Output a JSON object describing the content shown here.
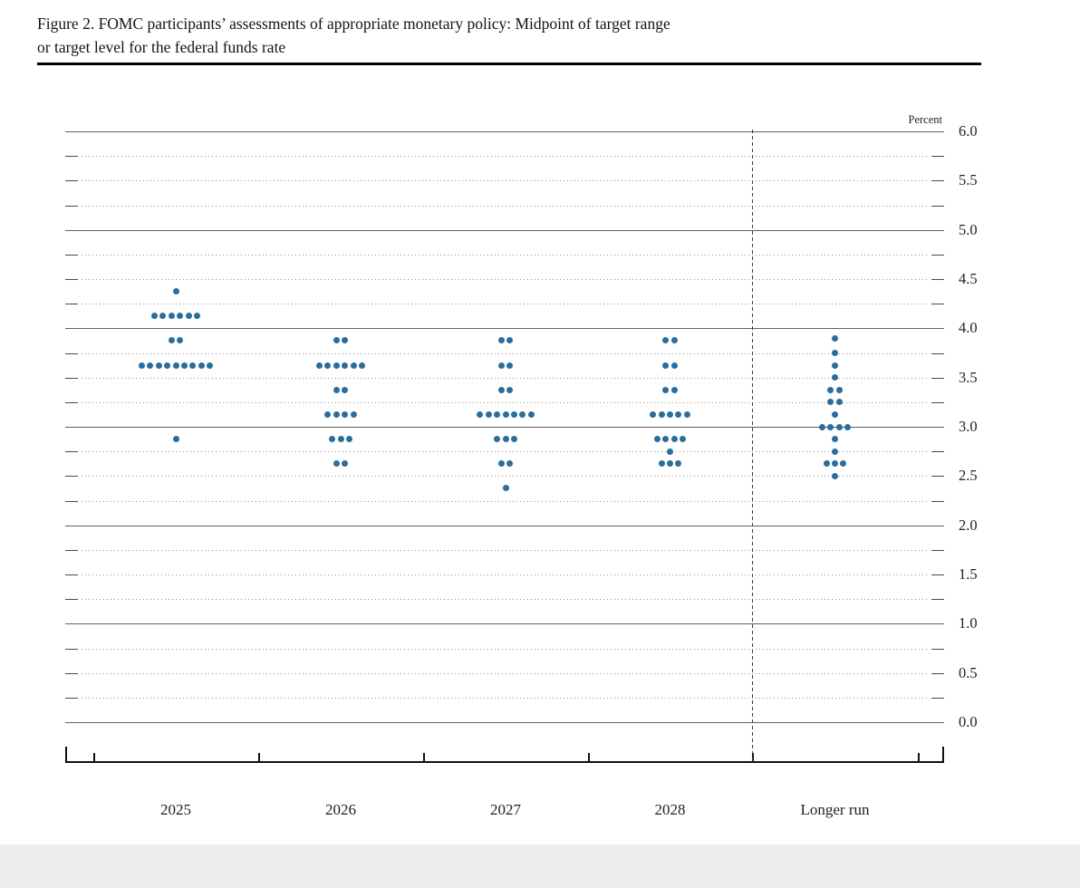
{
  "figure": {
    "title_lines": [
      "Figure 2. FOMC participants’ assessments of appropriate monetary policy: Midpoint of target range",
      "or target level for the federal funds rate"
    ]
  },
  "chart_data": {
    "type": "scatter",
    "subtype": "fomc-dot-plot",
    "title": "FOMC participants’ assessments of appropriate monetary policy: Midpoint of target range or target level for the federal funds rate",
    "unit_label": "Percent",
    "xlabel": "",
    "ylabel": "Percent",
    "ylim": [
      0.0,
      6.0
    ],
    "y_grid_step": 0.25,
    "y_label_step": 0.5,
    "y_tick_labels": [
      "6.0",
      "5.5",
      "5.0",
      "4.5",
      "4.0",
      "3.5",
      "3.0",
      "2.5",
      "2.0",
      "1.5",
      "1.0",
      "0.5",
      "0.0"
    ],
    "grid": true,
    "legend": "none",
    "dot_color": "#2b6d9b",
    "categories": [
      "2025",
      "2026",
      "2027",
      "2028",
      "Longer run"
    ],
    "columns": [
      {
        "category": "2025",
        "dots": [
          {
            "rate": 4.375,
            "count": 1
          },
          {
            "rate": 4.125,
            "count": 6
          },
          {
            "rate": 3.875,
            "count": 2
          },
          {
            "rate": 3.625,
            "count": 9
          },
          {
            "rate": 2.875,
            "count": 1
          }
        ]
      },
      {
        "category": "2026",
        "dots": [
          {
            "rate": 3.875,
            "count": 2
          },
          {
            "rate": 3.625,
            "count": 6
          },
          {
            "rate": 3.375,
            "count": 2
          },
          {
            "rate": 3.125,
            "count": 4
          },
          {
            "rate": 2.875,
            "count": 3
          },
          {
            "rate": 2.625,
            "count": 2
          }
        ]
      },
      {
        "category": "2027",
        "dots": [
          {
            "rate": 3.875,
            "count": 2
          },
          {
            "rate": 3.625,
            "count": 2
          },
          {
            "rate": 3.375,
            "count": 2
          },
          {
            "rate": 3.125,
            "count": 7
          },
          {
            "rate": 2.875,
            "count": 3
          },
          {
            "rate": 2.625,
            "count": 2
          },
          {
            "rate": 2.375,
            "count": 1
          }
        ]
      },
      {
        "category": "2028",
        "dots": [
          {
            "rate": 3.875,
            "count": 2
          },
          {
            "rate": 3.625,
            "count": 2
          },
          {
            "rate": 3.375,
            "count": 2
          },
          {
            "rate": 3.125,
            "count": 5
          },
          {
            "rate": 2.875,
            "count": 4
          },
          {
            "rate": 2.75,
            "count": 1
          },
          {
            "rate": 2.625,
            "count": 3
          }
        ]
      },
      {
        "category": "Longer run",
        "dots": [
          {
            "rate": 3.9,
            "count": 1
          },
          {
            "rate": 3.75,
            "count": 1
          },
          {
            "rate": 3.625,
            "count": 1
          },
          {
            "rate": 3.5,
            "count": 1
          },
          {
            "rate": 3.375,
            "count": 2
          },
          {
            "rate": 3.25,
            "count": 2
          },
          {
            "rate": 3.125,
            "count": 1
          },
          {
            "rate": 3.0,
            "count": 4
          },
          {
            "rate": 2.875,
            "count": 1
          },
          {
            "rate": 2.75,
            "count": 1
          },
          {
            "rate": 2.625,
            "count": 3
          },
          {
            "rate": 2.5,
            "count": 1
          }
        ]
      }
    ]
  }
}
